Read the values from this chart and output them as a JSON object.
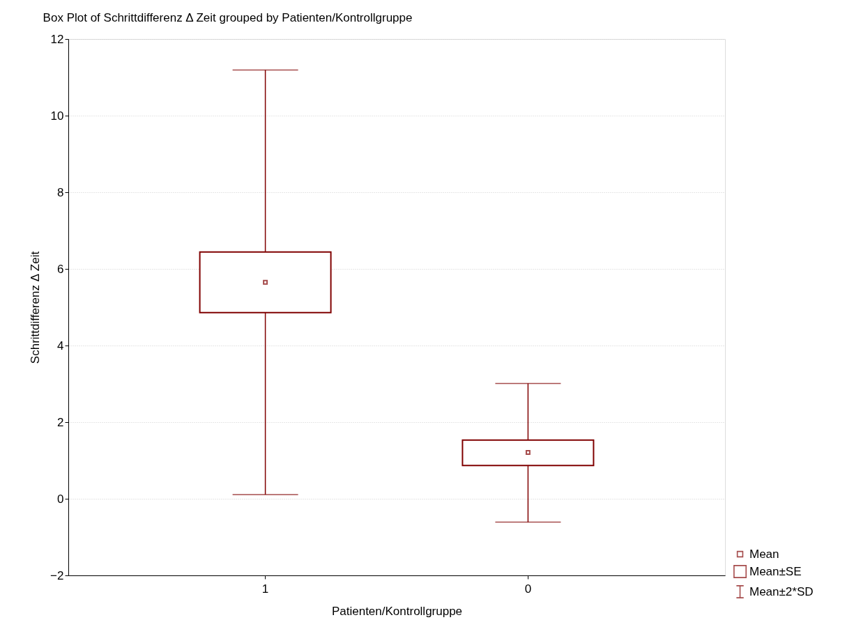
{
  "chart_data": {
    "type": "box",
    "title": "Box Plot of Schrittdifferenz Δ Zeit grouped by  Patienten/Kontrollgruppe",
    "xlabel": "Patienten/Kontrollgruppe",
    "ylabel": "Schrittdifferenz Δ Zeit",
    "categories": [
      "1",
      "0"
    ],
    "boxes": [
      {
        "low": 0.11,
        "q1": 4.86,
        "q3": 6.44,
        "high": 11.19,
        "mean": 5.65
      },
      {
        "low": -0.61,
        "q1": 0.87,
        "q3": 1.53,
        "high": 3.01,
        "mean": 1.21
      }
    ],
    "color": "#800000",
    "ylim": [
      -2,
      12
    ],
    "yticks": [
      -2,
      0,
      2,
      4,
      6,
      8,
      10,
      12
    ],
    "grid": "y",
    "annotations": [
      "Mean",
      "Mean±SE",
      "Mean±2*SD"
    ]
  }
}
